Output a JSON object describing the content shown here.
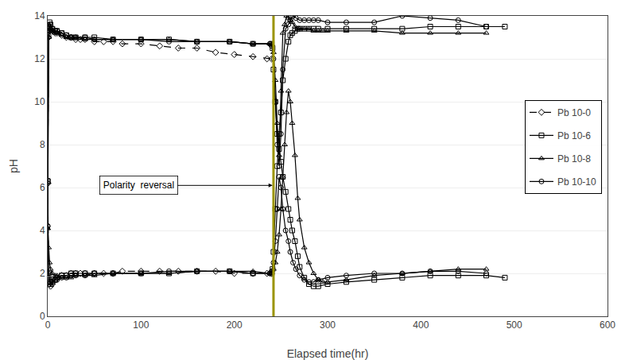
{
  "chart_data": {
    "type": "line",
    "xlabel": "Elapsed time(hr)",
    "ylabel": "pH",
    "xlim": [
      0,
      600
    ],
    "ylim": [
      0,
      14
    ],
    "xticks": [
      0,
      100,
      200,
      300,
      400,
      500,
      600
    ],
    "yticks": [
      0,
      2,
      4,
      6,
      8,
      10,
      12,
      14
    ],
    "grid": "y",
    "legend": "upper right",
    "vlines": [
      {
        "x": 242,
        "color": "#9B9400"
      }
    ],
    "annotations": [
      {
        "text": "Polarity  reversal",
        "x": 55,
        "y": 6.1,
        "arrow_x": 241,
        "arrow_y": 6.1
      }
    ],
    "series": [
      {
        "name": "Pb 10-0",
        "color": "black",
        "line_style": "dashed",
        "marker": "diamond",
        "lines": [
          {
            "x": [
              0,
              1,
              2,
              3,
              5,
              8,
              10,
              15,
              20,
              25,
              30,
              35,
              40,
              50,
              60,
              70,
              80,
              100,
              120,
              140,
              160,
              180,
              200,
              220,
              235,
              240
            ],
            "values": [
              6.2,
              13.0,
              13.3,
              13.4,
              13.3,
              13.2,
              13.2,
              13.1,
              13.0,
              13.0,
              12.9,
              12.9,
              12.9,
              12.8,
              12.8,
              12.8,
              12.7,
              12.7,
              12.6,
              12.5,
              12.5,
              12.3,
              12.2,
              12.1,
              12.0,
              12.0
            ]
          },
          {
            "x": [
              0,
              1,
              2,
              3,
              5,
              8,
              10,
              15,
              20,
              25,
              30,
              35,
              40,
              50,
              60,
              70,
              80,
              100,
              120,
              140,
              160,
              180,
              200,
              220,
              235,
              240
            ],
            "values": [
              6.2,
              1.8,
              1.5,
              1.4,
              1.5,
              1.7,
              1.8,
              1.9,
              1.9,
              2.0,
              2.0,
              2.0,
              2.0,
              2.0,
              2.0,
              2.0,
              2.1,
              2.1,
              2.1,
              2.1,
              2.1,
              2.1,
              2.0,
              2.0,
              2.0,
              2.0
            ]
          }
        ]
      },
      {
        "name": "Pb 10-6",
        "color": "black",
        "line_style": "solid",
        "marker": "square",
        "lines": [
          {
            "x": [
              0,
              1,
              2,
              3,
              5,
              8,
              10,
              15,
              20,
              25,
              30,
              40,
              50,
              70,
              100,
              130,
              160,
              195,
              220,
              240,
              241,
              242,
              244,
              246,
              248,
              250,
              252,
              255,
              258,
              260,
              262,
              265,
              268,
              270,
              275,
              280,
              285,
              290,
              300,
              320,
              350,
              380,
              410,
              440,
              470,
              490
            ],
            "values": [
              6.3,
              13.5,
              13.7,
              13.6,
              13.4,
              13.3,
              13.3,
              13.2,
              13.1,
              13.0,
              13.0,
              13.0,
              13.0,
              12.9,
              12.9,
              12.9,
              12.8,
              12.8,
              12.7,
              12.7,
              12.5,
              11.5,
              10.0,
              8.5,
              7.8,
              7.2,
              6.5,
              5.8,
              5.0,
              4.5,
              4.0,
              3.5,
              2.8,
              2.3,
              1.8,
              1.5,
              1.4,
              1.4,
              1.5,
              1.6,
              1.7,
              1.8,
              1.9,
              1.9,
              1.9,
              1.8
            ]
          },
          {
            "x": [
              0,
              1,
              2,
              3,
              5,
              8,
              10,
              15,
              20,
              25,
              30,
              40,
              50,
              70,
              100,
              130,
              160,
              195,
              220,
              240,
              241,
              242,
              244,
              246,
              248,
              250,
              252,
              255,
              258,
              260,
              262,
              265,
              268,
              270,
              275,
              280,
              285,
              290,
              300,
              320,
              350,
              380,
              410,
              440,
              470,
              490
            ],
            "values": [
              6.3,
              1.9,
              1.6,
              1.5,
              1.6,
              1.7,
              1.8,
              1.9,
              1.9,
              2.0,
              2.0,
              2.0,
              2.0,
              2.0,
              2.0,
              2.0,
              2.1,
              2.1,
              2.0,
              2.0,
              2.2,
              3.0,
              5.0,
              7.0,
              8.5,
              9.5,
              11.0,
              12.0,
              12.8,
              13.1,
              13.2,
              13.3,
              13.4,
              13.4,
              13.4,
              13.4,
              13.4,
              13.4,
              13.4,
              13.4,
              13.4,
              13.4,
              13.5,
              13.5,
              13.5,
              13.5
            ]
          }
        ]
      },
      {
        "name": "Pb 10-8",
        "color": "black",
        "line_style": "solid",
        "marker": "triangle-up",
        "lines": [
          {
            "x": [
              0,
              1,
              2,
              3,
              5,
              8,
              10,
              15,
              20,
              25,
              30,
              40,
              50,
              70,
              100,
              130,
              160,
              195,
              220,
              238,
              240,
              242,
              244,
              246,
              248,
              250,
              252,
              254,
              256,
              258,
              260,
              262,
              265,
              268,
              270,
              275,
              280,
              285,
              290,
              295,
              300,
              320,
              350,
              380,
              410,
              440,
              470
            ],
            "values": [
              4.1,
              3.2,
              2.5,
              2.2,
              2.0,
              1.9,
              1.9,
              1.8,
              1.8,
              1.8,
              1.9,
              1.9,
              1.9,
              2.0,
              2.0,
              2.0,
              2.1,
              2.1,
              2.1,
              2.0,
              2.0,
              2.2,
              2.5,
              3.0,
              3.8,
              5.0,
              6.5,
              8.0,
              9.5,
              10.5,
              10.0,
              9.0,
              7.5,
              5.5,
              4.5,
              3.2,
              2.5,
              2.0,
              1.7,
              1.6,
              1.6,
              1.7,
              1.9,
              2.0,
              2.1,
              2.2,
              2.2
            ]
          },
          {
            "x": [
              0,
              1,
              2,
              3,
              5,
              8,
              10,
              15,
              20,
              25,
              30,
              40,
              50,
              70,
              100,
              130,
              160,
              195,
              220,
              238,
              240,
              242,
              244,
              246,
              248,
              250,
              252,
              254,
              256,
              258,
              260,
              262,
              265,
              268,
              270,
              275,
              280,
              285,
              290,
              295,
              300,
              320,
              350,
              380,
              410,
              440,
              470
            ],
            "values": [
              4.1,
              13.0,
              13.3,
              13.4,
              13.3,
              13.2,
              13.2,
              13.1,
              13.0,
              13.0,
              13.0,
              12.9,
              12.9,
              12.9,
              12.9,
              12.9,
              12.8,
              12.8,
              12.7,
              12.7,
              12.7,
              12.3,
              11.0,
              9.0,
              7.5,
              10.5,
              13.2,
              13.6,
              14.0,
              13.9,
              13.8,
              13.7,
              13.5,
              13.4,
              13.4,
              13.4,
              13.4,
              13.3,
              13.3,
              13.3,
              13.3,
              13.3,
              13.3,
              13.2,
              13.2,
              13.2,
              13.2
            ]
          }
        ]
      },
      {
        "name": "Pb 10-10",
        "color": "black",
        "line_style": "solid",
        "marker": "circle",
        "lines": [
          {
            "x": [
              0,
              1,
              2,
              3,
              5,
              8,
              10,
              15,
              20,
              25,
              30,
              40,
              50,
              70,
              100,
              130,
              160,
              195,
              220,
              238,
              240,
              242,
              244,
              246,
              248,
              250,
              252,
              255,
              258,
              260,
              263,
              266,
              270,
              275,
              280,
              285,
              290,
              300,
              320,
              350,
              380,
              410,
              440,
              470
            ],
            "values": [
              4.2,
              2.0,
              1.7,
              1.6,
              1.6,
              1.7,
              1.7,
              1.8,
              1.8,
              1.9,
              1.9,
              1.9,
              2.0,
              2.0,
              2.0,
              2.1,
              2.1,
              2.1,
              2.0,
              2.0,
              2.1,
              2.5,
              3.5,
              5.0,
              6.5,
              6.0,
              5.0,
              4.0,
              3.5,
              3.0,
              2.5,
              2.2,
              1.9,
              1.7,
              1.6,
              1.6,
              1.7,
              1.8,
              1.9,
              2.0,
              2.0,
              2.1,
              2.1,
              2.0
            ]
          },
          {
            "x": [
              0,
              1,
              2,
              3,
              5,
              8,
              10,
              15,
              20,
              25,
              30,
              40,
              50,
              70,
              100,
              130,
              160,
              195,
              220,
              238,
              240,
              242,
              244,
              246,
              248,
              250,
              252,
              255,
              258,
              260,
              263,
              266,
              270,
              275,
              280,
              285,
              290,
              300,
              320,
              350,
              380,
              410,
              440,
              470
            ],
            "values": [
              4.2,
              13.1,
              13.5,
              13.6,
              13.4,
              13.3,
              13.3,
              13.2,
              13.1,
              13.0,
              13.0,
              13.0,
              12.9,
              12.9,
              12.9,
              12.8,
              12.8,
              12.8,
              12.7,
              12.7,
              12.6,
              12.0,
              10.0,
              8.0,
              7.0,
              8.5,
              11.5,
              13.4,
              13.6,
              13.8,
              14.0,
              13.9,
              13.8,
              13.8,
              13.8,
              13.8,
              13.8,
              13.7,
              13.7,
              13.7,
              14.0,
              13.9,
              13.8,
              13.5
            ]
          }
        ]
      }
    ]
  }
}
